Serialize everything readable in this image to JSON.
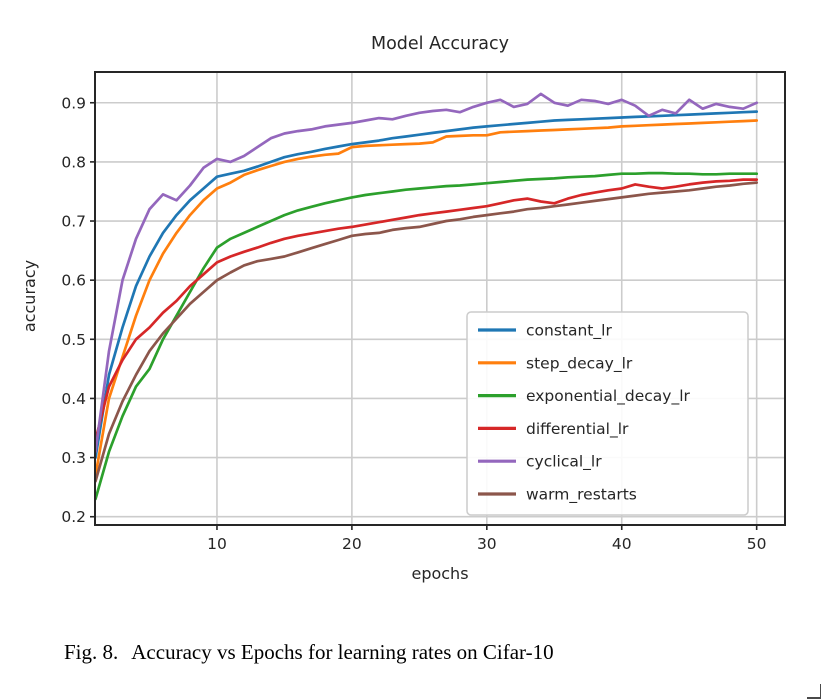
{
  "figure": {
    "caption": {
      "label": "Fig. 8.",
      "text": "Accuracy vs Epochs for learning rates on Cifar-10"
    }
  },
  "chart_data": {
    "type": "line",
    "title": "Model Accuracy",
    "xlabel": "epochs",
    "ylabel": "accuracy",
    "xlim": [
      0.96,
      52.1
    ],
    "ylim": [
      0.186,
      0.952
    ],
    "xticks": [
      10,
      20,
      30,
      40,
      50
    ],
    "yticks": [
      0.2,
      0.3,
      0.4,
      0.5,
      0.6,
      0.7,
      0.8,
      0.9
    ],
    "grid": true,
    "grid_color": "#cccccc",
    "spine_color": "#262626",
    "legend_position": "lower-right-inside",
    "legend_border_color": "#cccccc",
    "x": [
      1,
      2,
      3,
      4,
      5,
      6,
      7,
      8,
      9,
      10,
      11,
      12,
      13,
      14,
      15,
      16,
      17,
      18,
      19,
      20,
      21,
      22,
      23,
      24,
      25,
      26,
      27,
      28,
      29,
      30,
      31,
      32,
      33,
      34,
      35,
      36,
      37,
      38,
      39,
      40,
      41,
      42,
      43,
      44,
      45,
      46,
      47,
      48,
      49,
      50
    ],
    "series": [
      {
        "name": "constant_lr",
        "color": "#1f77b4",
        "values": [
          0.3,
          0.44,
          0.52,
          0.59,
          0.64,
          0.68,
          0.71,
          0.735,
          0.755,
          0.775,
          0.78,
          0.785,
          0.792,
          0.8,
          0.808,
          0.813,
          0.817,
          0.822,
          0.826,
          0.83,
          0.833,
          0.836,
          0.84,
          0.843,
          0.846,
          0.849,
          0.852,
          0.855,
          0.858,
          0.86,
          0.862,
          0.864,
          0.866,
          0.868,
          0.87,
          0.871,
          0.872,
          0.873,
          0.874,
          0.875,
          0.876,
          0.877,
          0.878,
          0.879,
          0.88,
          0.881,
          0.882,
          0.883,
          0.884,
          0.885
        ]
      },
      {
        "name": "step_decay_lr",
        "color": "#ff7f0e",
        "values": [
          0.27,
          0.4,
          0.47,
          0.54,
          0.6,
          0.645,
          0.68,
          0.71,
          0.735,
          0.755,
          0.765,
          0.778,
          0.786,
          0.793,
          0.8,
          0.805,
          0.809,
          0.812,
          0.814,
          0.825,
          0.827,
          0.828,
          0.829,
          0.83,
          0.831,
          0.833,
          0.843,
          0.844,
          0.845,
          0.845,
          0.85,
          0.851,
          0.852,
          0.853,
          0.854,
          0.855,
          0.856,
          0.857,
          0.858,
          0.86,
          0.861,
          0.862,
          0.863,
          0.864,
          0.865,
          0.866,
          0.867,
          0.868,
          0.869,
          0.87
        ]
      },
      {
        "name": "exponential_decay_lr",
        "color": "#2ca02c",
        "values": [
          0.23,
          0.31,
          0.37,
          0.42,
          0.45,
          0.5,
          0.54,
          0.58,
          0.62,
          0.655,
          0.67,
          0.68,
          0.69,
          0.7,
          0.71,
          0.718,
          0.724,
          0.73,
          0.735,
          0.74,
          0.744,
          0.747,
          0.75,
          0.753,
          0.755,
          0.757,
          0.759,
          0.76,
          0.762,
          0.764,
          0.766,
          0.768,
          0.77,
          0.771,
          0.772,
          0.774,
          0.775,
          0.776,
          0.778,
          0.78,
          0.78,
          0.781,
          0.781,
          0.78,
          0.78,
          0.779,
          0.779,
          0.78,
          0.78,
          0.78
        ]
      },
      {
        "name": "differential_lr",
        "color": "#d62728",
        "values": [
          0.33,
          0.42,
          0.465,
          0.5,
          0.52,
          0.545,
          0.565,
          0.59,
          0.61,
          0.63,
          0.64,
          0.648,
          0.655,
          0.663,
          0.67,
          0.675,
          0.679,
          0.683,
          0.687,
          0.69,
          0.694,
          0.698,
          0.702,
          0.706,
          0.71,
          0.713,
          0.716,
          0.719,
          0.722,
          0.725,
          0.73,
          0.735,
          0.738,
          0.733,
          0.73,
          0.738,
          0.744,
          0.748,
          0.752,
          0.755,
          0.762,
          0.758,
          0.755,
          0.758,
          0.762,
          0.765,
          0.767,
          0.768,
          0.77,
          0.77
        ]
      },
      {
        "name": "cyclical_lr",
        "color": "#9467bd",
        "values": [
          0.31,
          0.48,
          0.6,
          0.67,
          0.72,
          0.745,
          0.735,
          0.76,
          0.79,
          0.805,
          0.8,
          0.81,
          0.825,
          0.84,
          0.848,
          0.852,
          0.855,
          0.86,
          0.863,
          0.866,
          0.87,
          0.874,
          0.872,
          0.878,
          0.883,
          0.886,
          0.888,
          0.884,
          0.893,
          0.9,
          0.905,
          0.893,
          0.898,
          0.915,
          0.9,
          0.895,
          0.905,
          0.903,
          0.898,
          0.905,
          0.895,
          0.878,
          0.888,
          0.882,
          0.905,
          0.89,
          0.898,
          0.893,
          0.89,
          0.9
        ]
      },
      {
        "name": "warm_restarts",
        "color": "#8c564b",
        "values": [
          0.26,
          0.34,
          0.395,
          0.44,
          0.48,
          0.51,
          0.535,
          0.56,
          0.58,
          0.6,
          0.613,
          0.625,
          0.632,
          0.636,
          0.64,
          0.647,
          0.654,
          0.661,
          0.668,
          0.675,
          0.678,
          0.68,
          0.685,
          0.688,
          0.69,
          0.695,
          0.7,
          0.703,
          0.707,
          0.71,
          0.713,
          0.716,
          0.72,
          0.722,
          0.725,
          0.728,
          0.731,
          0.734,
          0.737,
          0.74,
          0.743,
          0.746,
          0.748,
          0.75,
          0.752,
          0.755,
          0.758,
          0.76,
          0.763,
          0.765
        ]
      }
    ]
  }
}
